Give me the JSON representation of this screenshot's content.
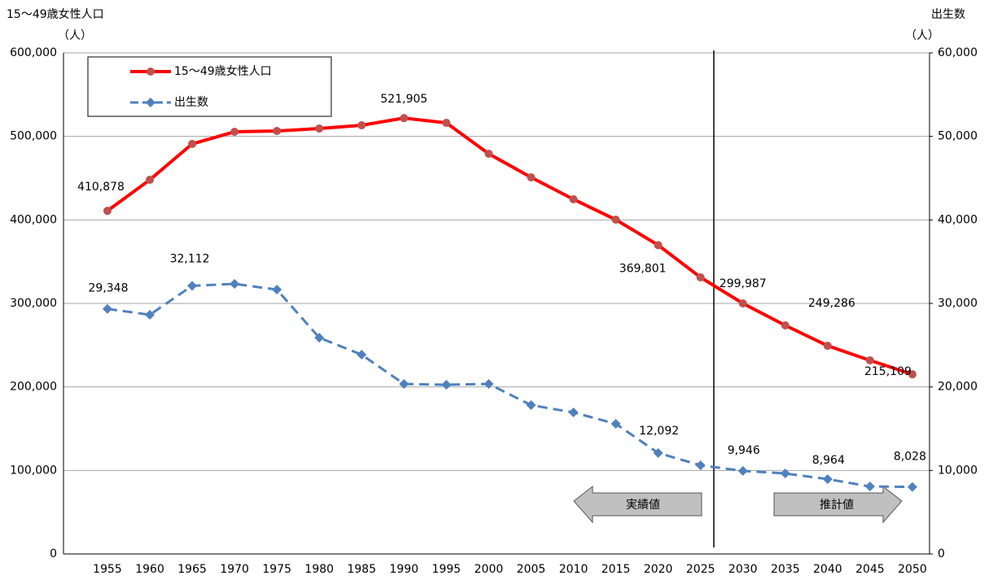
{
  "chart_data": {
    "type": "line",
    "y_axis_title": "15〜49歳女性人口",
    "y_axis_unit": "（人）",
    "y2_axis_title": "出生数",
    "y2_axis_unit": "（人）",
    "categories": [
      "1955",
      "1960",
      "1965",
      "1970",
      "1975",
      "1980",
      "1985",
      "1990",
      "1995",
      "2000",
      "2005",
      "2010",
      "2015",
      "2020",
      "2025",
      "2030",
      "2035",
      "2040",
      "2045",
      "2050"
    ],
    "ylim": [
      0,
      600000
    ],
    "yticks": [
      0,
      {
        "value": 100000,
        "label": "100,000"
      },
      {
        "value": 200000,
        "label": "200,000"
      },
      {
        "value": 300000,
        "label": "300,000"
      },
      {
        "value": 400000,
        "label": "400,000"
      },
      {
        "value": 500000,
        "label": "500,000"
      },
      {
        "value": 600000,
        "label": "600,000"
      }
    ],
    "y2lim": [
      0,
      60000
    ],
    "y2ticks": [
      0,
      {
        "value": 10000,
        "label": "10,000"
      },
      {
        "value": 20000,
        "label": "20,000"
      },
      {
        "value": 30000,
        "label": "30,000"
      },
      {
        "value": 40000,
        "label": "40,000"
      },
      {
        "value": 50000,
        "label": "50,000"
      },
      {
        "value": 60000,
        "label": "60,000"
      }
    ],
    "grid": true,
    "legend": "upper left",
    "series": [
      {
        "name": "15〜49歳女性人口",
        "color": "#ff0000",
        "marker_color": "#c0504d",
        "values": [
          410878,
          448000,
          491000,
          505500,
          506500,
          509400,
          513300,
          521905,
          516200,
          479200,
          451000,
          424700,
          400300,
          369801,
          331200,
          299987,
          273700,
          249286,
          231800,
          215109
        ],
        "value_labels": [
          "410,878",
          null,
          null,
          null,
          null,
          null,
          null,
          "521,905",
          null,
          null,
          null,
          null,
          null,
          "369,801",
          null,
          "299,987",
          null,
          "249,286",
          null,
          "215,109"
        ]
      },
      {
        "name": "出生数",
        "color": "#4f81bd",
        "axis": "y2",
        "dashed": true,
        "values": [
          29348,
          28640,
          32112,
          32340,
          31650,
          25900,
          23860,
          20360,
          20260,
          20360,
          17820,
          16950,
          15580,
          12092,
          10620,
          9946,
          9640,
          8964,
          8080,
          8028
        ],
        "value_labels": [
          "29,348",
          null,
          "32,112",
          null,
          null,
          null,
          null,
          null,
          null,
          null,
          null,
          null,
          null,
          "12,092",
          null,
          "9,946",
          null,
          "8,964",
          null,
          "8,028"
        ]
      }
    ],
    "annotations": [
      "実績値",
      "推計値"
    ]
  }
}
